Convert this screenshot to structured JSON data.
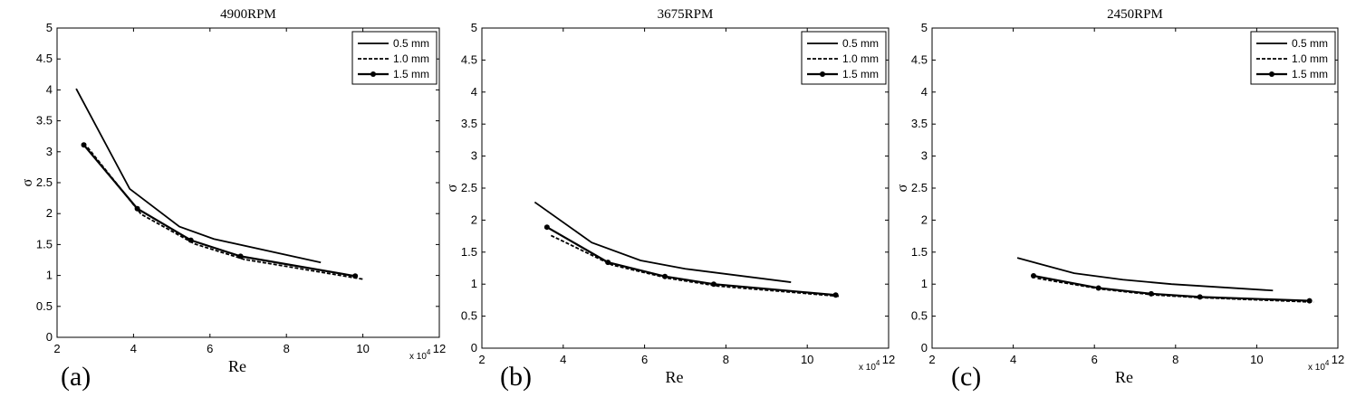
{
  "chart_data": [
    {
      "type": "line",
      "title": "4900RPM",
      "panel_label": "(a)",
      "xlabel": "Re",
      "ylabel": "σ",
      "x_multiplier": "x 10",
      "x_multiplier_exp": "4",
      "xlim": [
        2,
        12
      ],
      "ylim": [
        0,
        5
      ],
      "xticks": [
        "2",
        "4",
        "6",
        "8",
        "10",
        "12"
      ],
      "yticks": [
        "0",
        "0.5",
        "1",
        "1.5",
        "2",
        "2.5",
        "3",
        "3.5",
        "4",
        "4.5",
        "5"
      ],
      "legend_position": "top-right",
      "series": [
        {
          "name": "0.5 mm",
          "style": "solid",
          "x": [
            2.5,
            3.9,
            5.2,
            6.1,
            8.9
          ],
          "y": [
            4.02,
            2.4,
            1.79,
            1.59,
            1.21
          ]
        },
        {
          "name": "1.0 mm",
          "style": "dashed",
          "x": [
            2.8,
            4.2,
            5.6,
            6.9,
            10.0
          ],
          "y": [
            3.07,
            1.99,
            1.51,
            1.26,
            0.94
          ]
        },
        {
          "name": "1.5 mm",
          "style": "solid-dot",
          "x": [
            2.7,
            4.1,
            5.5,
            6.8,
            9.8
          ],
          "y": [
            3.11,
            2.08,
            1.57,
            1.31,
            0.99
          ]
        }
      ]
    },
    {
      "type": "line",
      "title": "3675RPM",
      "panel_label": "(b)",
      "xlabel": "Re",
      "ylabel": "σ",
      "x_multiplier": "x 10",
      "x_multiplier_exp": "4",
      "xlim": [
        2,
        12
      ],
      "ylim": [
        0,
        5
      ],
      "xticks": [
        "2",
        "4",
        "6",
        "8",
        "10",
        "12"
      ],
      "yticks": [
        "0",
        "0.5",
        "1",
        "1.5",
        "2",
        "2.5",
        "3",
        "3.5",
        "4",
        "4.5",
        "5"
      ],
      "legend_position": "top-right",
      "series": [
        {
          "name": "0.5 mm",
          "style": "solid",
          "x": [
            3.3,
            4.7,
            5.9,
            7.0,
            9.6
          ],
          "y": [
            2.28,
            1.65,
            1.37,
            1.24,
            1.03
          ]
        },
        {
          "name": "1.0 mm",
          "style": "dashed",
          "x": [
            3.7,
            5.2,
            6.6,
            7.8,
            10.8
          ],
          "y": [
            1.76,
            1.3,
            1.09,
            0.97,
            0.81
          ]
        },
        {
          "name": "1.5 mm",
          "style": "solid-dot",
          "x": [
            3.6,
            5.1,
            6.5,
            7.7,
            10.7
          ],
          "y": [
            1.89,
            1.34,
            1.12,
            1.0,
            0.83
          ]
        }
      ]
    },
    {
      "type": "line",
      "title": "2450RPM",
      "panel_label": "(c)",
      "xlabel": "Re",
      "ylabel": "σ",
      "x_multiplier": "x 10",
      "x_multiplier_exp": "4",
      "xlim": [
        2,
        12
      ],
      "ylim": [
        0,
        5
      ],
      "xticks": [
        "2",
        "4",
        "6",
        "8",
        "10",
        "12"
      ],
      "yticks": [
        "0",
        "0.5",
        "1",
        "1.5",
        "2",
        "2.5",
        "3",
        "3.5",
        "4",
        "4.5",
        "5"
      ],
      "legend_position": "top-right",
      "series": [
        {
          "name": "0.5 mm",
          "style": "solid",
          "x": [
            4.1,
            5.5,
            6.7,
            7.9,
            10.4
          ],
          "y": [
            1.41,
            1.17,
            1.07,
            1.0,
            0.9
          ]
        },
        {
          "name": "1.0 mm",
          "style": "dashed",
          "x": [
            4.6,
            6.2,
            7.5,
            8.6,
            11.4
          ],
          "y": [
            1.09,
            0.92,
            0.83,
            0.79,
            0.72
          ]
        },
        {
          "name": "1.5 mm",
          "style": "solid-dot",
          "x": [
            4.5,
            6.1,
            7.4,
            8.6,
            11.3
          ],
          "y": [
            1.13,
            0.94,
            0.85,
            0.8,
            0.74
          ]
        }
      ]
    }
  ]
}
